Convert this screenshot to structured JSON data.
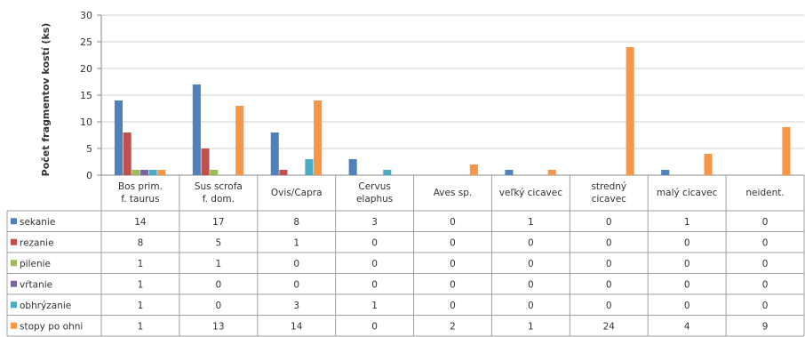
{
  "chart_data": {
    "type": "bar",
    "ylabel": "Počet fragmentov kostí (ks)",
    "ylim": [
      0,
      30
    ],
    "yticks": [
      "0",
      "5",
      "10",
      "15",
      "20",
      "25",
      "30"
    ],
    "grid": true,
    "legend": "data-table",
    "categories": [
      [
        "Bos prim.",
        "f. taurus"
      ],
      [
        "Sus scrofa",
        "f. dom."
      ],
      [
        "Ovis/Capra"
      ],
      [
        "Cervus",
        "elaphus"
      ],
      [
        "Aves sp."
      ],
      [
        "veľký cicavec"
      ],
      [
        "stredný",
        "cicavec"
      ],
      [
        "malý cicavec"
      ],
      [
        "neident."
      ]
    ],
    "series": [
      {
        "name": "sekanie",
        "color": "#4f81bd",
        "values": [
          14,
          17,
          8,
          3,
          0,
          1,
          0,
          1,
          0
        ]
      },
      {
        "name": "rezanie",
        "color": "#c0504d",
        "values": [
          8,
          5,
          1,
          0,
          0,
          0,
          0,
          0,
          0
        ]
      },
      {
        "name": "pilenie",
        "color": "#9bbb59",
        "values": [
          1,
          1,
          0,
          0,
          0,
          0,
          0,
          0,
          0
        ]
      },
      {
        "name": "vŕtanie",
        "color": "#8064a2",
        "values": [
          1,
          0,
          0,
          0,
          0,
          0,
          0,
          0,
          0
        ]
      },
      {
        "name": "obhrýzanie",
        "color": "#4bacc6",
        "values": [
          1,
          0,
          3,
          1,
          0,
          0,
          0,
          0,
          0
        ]
      },
      {
        "name": "stopy po ohni",
        "color": "#f79646",
        "values": [
          1,
          13,
          14,
          0,
          2,
          1,
          24,
          4,
          9
        ]
      }
    ]
  }
}
